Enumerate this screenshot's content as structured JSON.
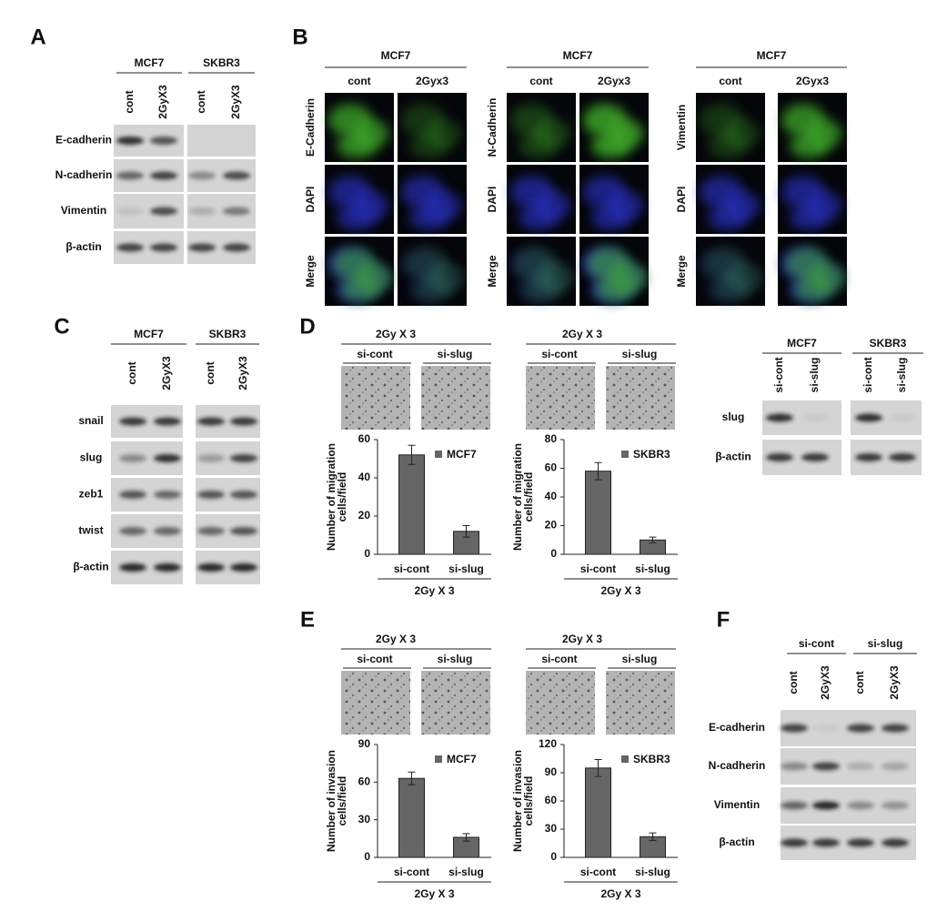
{
  "panels": {
    "A": {
      "label": "A",
      "groups": [
        "MCF7",
        "SKBR3"
      ],
      "lanes": [
        "cont",
        "2GyX3",
        "cont",
        "2GyX3"
      ],
      "rows": [
        "E-cadherin",
        "N-cadherin",
        "Vimentin",
        "β-actin"
      ]
    },
    "B": {
      "label": "B",
      "groups": [
        {
          "header": "MCF7",
          "lanes": [
            "cont",
            "2Gyx3"
          ],
          "rows": [
            "E-Cadherin",
            "DAPI",
            "Merge"
          ]
        },
        {
          "header": "MCF7",
          "lanes": [
            "cont",
            "2Gyx3"
          ],
          "rows": [
            "N-Cadherin",
            "DAPI",
            "Merge"
          ]
        },
        {
          "header": "MCF7",
          "lanes": [
            "cont",
            "2Gyx3"
          ],
          "rows": [
            "Vimentin",
            "DAPI",
            "Merge"
          ]
        }
      ]
    },
    "C": {
      "label": "C",
      "groups": [
        "MCF7",
        "SKBR3"
      ],
      "lanes": [
        "cont",
        "2GyX3",
        "cont",
        "2GyX3"
      ],
      "rows": [
        "snail",
        "slug",
        "zeb1",
        "twist",
        "β-actin"
      ]
    },
    "D": {
      "label": "D",
      "groups": [
        "MCF7",
        "SKBR3"
      ],
      "lanes": [
        "si-cont",
        "si-slug",
        "si-cont",
        "si-slug"
      ],
      "rows": [
        "slug",
        "β-actin"
      ]
    },
    "E": {
      "label": "E"
    },
    "F": {
      "label": "F",
      "groups": [
        "si-cont",
        "si-slug"
      ],
      "lanes": [
        "cont",
        "2GyX3",
        "cont",
        "2GyX3"
      ],
      "rows": [
        "E-cadherin",
        "N-cadherin",
        "Vimentin",
        "β-actin"
      ]
    }
  },
  "chart_data": [
    {
      "type": "bar",
      "header": "2Gy X 3",
      "image_labels": [
        "si-cont",
        "si-slug"
      ],
      "ylabel": [
        "Number of migration",
        "cells/field"
      ],
      "categories": [
        "si-cont",
        "si-slug"
      ],
      "xlabel": "2Gy X 3",
      "series": [
        {
          "name": "MCF7",
          "color": "#666666",
          "values": [
            52,
            12
          ],
          "errors": [
            5,
            3
          ]
        }
      ],
      "ylim": [
        0,
        60
      ],
      "yticks": [
        0,
        20,
        40,
        60
      ]
    },
    {
      "type": "bar",
      "header": "2Gy X 3",
      "image_labels": [
        "si-cont",
        "si-slug"
      ],
      "ylabel": [
        "Number of migration",
        "cells/field"
      ],
      "categories": [
        "si-cont",
        "si-slug"
      ],
      "xlabel": "2Gy X 3",
      "series": [
        {
          "name": "SKBR3",
          "color": "#666666",
          "values": [
            58,
            10
          ],
          "errors": [
            6,
            2
          ]
        }
      ],
      "ylim": [
        0,
        80
      ],
      "yticks": [
        0,
        20,
        40,
        60,
        80
      ]
    },
    {
      "type": "bar",
      "header": "2Gy X 3",
      "image_labels": [
        "si-cont",
        "si-slug"
      ],
      "ylabel": [
        "Number of invasion",
        "cells/field"
      ],
      "categories": [
        "si-cont",
        "si-slug"
      ],
      "xlabel": "2Gy X 3",
      "series": [
        {
          "name": "MCF7",
          "color": "#666666",
          "values": [
            63,
            16
          ],
          "errors": [
            5,
            3
          ]
        }
      ],
      "ylim": [
        0,
        90
      ],
      "yticks": [
        0,
        30,
        60,
        90
      ]
    },
    {
      "type": "bar",
      "header": "2Gy X 3",
      "image_labels": [
        "si-cont",
        "si-slug"
      ],
      "ylabel": [
        "Number of invasion",
        "cells/field"
      ],
      "categories": [
        "si-cont",
        "si-slug"
      ],
      "xlabel": "2Gy X 3",
      "series": [
        {
          "name": "SKBR3",
          "color": "#666666",
          "values": [
            95,
            22
          ],
          "errors": [
            9,
            4
          ]
        }
      ],
      "ylim": [
        0,
        120
      ],
      "yticks": [
        0,
        30,
        60,
        90,
        120
      ]
    }
  ]
}
